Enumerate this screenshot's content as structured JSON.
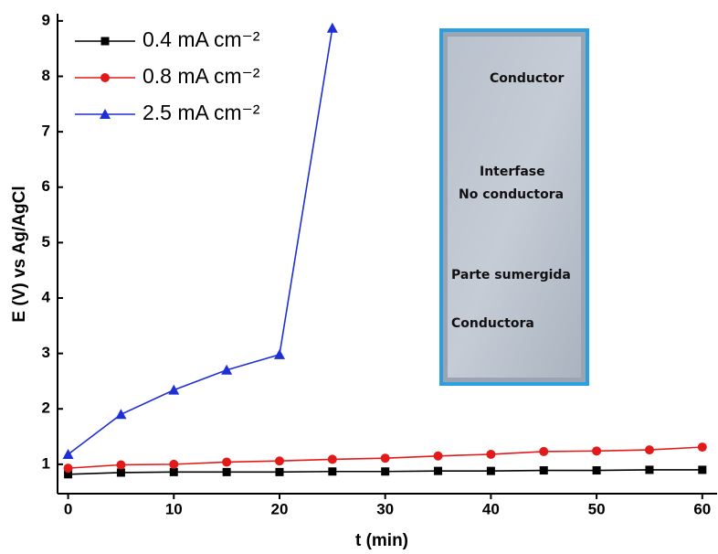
{
  "chart_data": {
    "type": "line",
    "x_label": "t (min)",
    "y_label": "E (V) vs Ag/AgCl",
    "x": [
      0,
      5,
      10,
      15,
      20,
      25,
      30,
      35,
      40,
      45,
      50,
      55,
      60
    ],
    "series": [
      {
        "name": "0.4 mA cm⁻²",
        "color": "#000000",
        "marker": "square",
        "values": [
          0.82,
          0.85,
          0.86,
          0.86,
          0.86,
          0.87,
          0.87,
          0.88,
          0.88,
          0.89,
          0.89,
          0.9,
          0.9
        ]
      },
      {
        "name": "0.8 mA cm⁻²",
        "color": "#e31a1a",
        "marker": "circle",
        "values": [
          0.93,
          0.99,
          1.0,
          1.04,
          1.06,
          1.09,
          1.11,
          1.15,
          1.18,
          1.23,
          1.24,
          1.26,
          1.31
        ]
      },
      {
        "name": "2.5 mA cm⁻²",
        "color": "#1f2fd6",
        "marker": "triangle",
        "values": [
          1.18,
          1.9,
          2.34,
          2.7,
          2.98,
          8.87,
          null,
          null,
          null,
          null,
          null,
          null,
          null
        ]
      }
    ],
    "xlim": [
      -1,
      61.4
    ],
    "xticks": [
      0,
      10,
      20,
      30,
      40,
      50,
      60
    ],
    "ylim": [
      0.47,
      9.13
    ],
    "yticks": [
      1,
      2,
      3,
      4,
      5,
      6,
      7,
      8,
      9
    ],
    "legend": "upper left",
    "annotations": [
      "Conductor",
      "Interfase",
      "No conductora",
      "Parte sumergida",
      "Conductora"
    ]
  }
}
